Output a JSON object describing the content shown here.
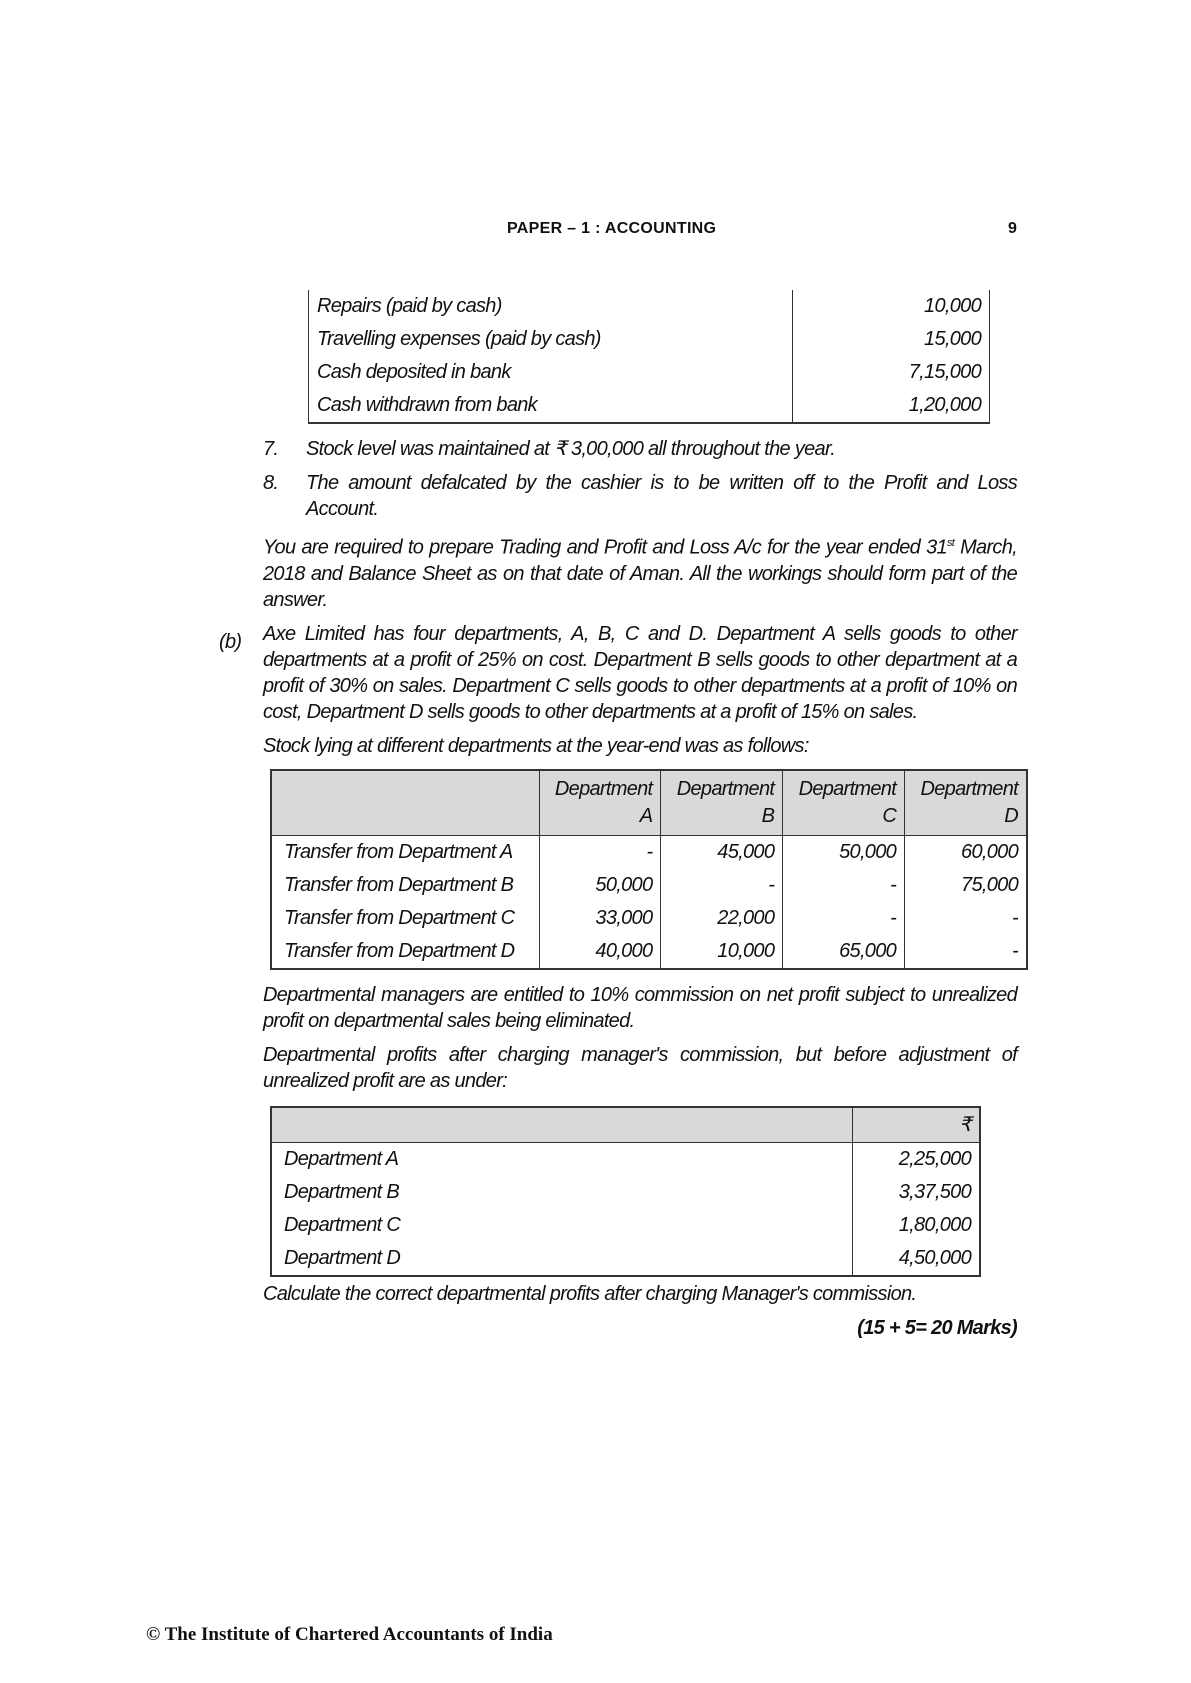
{
  "header": {
    "title": "PAPER – 1 : ACCOUNTING",
    "page_number": "9"
  },
  "cash_table": [
    {
      "item": "Repairs (paid by cash)",
      "amount": "10,000"
    },
    {
      "item": "Travelling expenses (paid by cash)",
      "amount": "15,000"
    },
    {
      "item": "Cash deposited in bank",
      "amount": "7,15,000"
    },
    {
      "item": "Cash withdrawn  from bank",
      "amount": "1,20,000"
    }
  ],
  "points": [
    {
      "num": "7.",
      "text": "Stock level was maintained at ₹ 3,00,000 all throughout the year."
    },
    {
      "num": "8.",
      "text": "The amount defalcated by the cashier is to be written off to the Profit and Loss Account."
    }
  ],
  "instruction_a": {
    "pre": "You are required to prepare Trading and Profit and Loss A/c for the year ended 31",
    "sup": "st",
    "post": " March, 2018 and Balance Sheet as on that date of Aman. All the workings should form part of the answer."
  },
  "part_b": {
    "label": "(b)",
    "intro": "Axe Limited has four departments, A, B, C and D. Department A sells  goods to other departments at a profit of 25% on cost. Department B sells goods to other department at a profit of 30% on sales. Department C sells goods to other departments at a profit of 10% on cost, Department D sells goods to other departments at a profit of 15% on sales.",
    "stock_intro": "Stock lying at different departments at the year-end was as follows:",
    "stock_table": {
      "headers": [
        {
          "l1": "Department",
          "l2": "A"
        },
        {
          "l1": "Department",
          "l2": "B"
        },
        {
          "l1": "Department",
          "l2": "C"
        },
        {
          "l1": "Department",
          "l2": "D"
        }
      ],
      "rows": [
        {
          "label": "Transfer  from Department A",
          "values": [
            "-",
            "45,000",
            "50,000",
            "60,000"
          ]
        },
        {
          "label": "Transfer  from Department B",
          "values": [
            "50,000",
            "-",
            "-",
            "75,000"
          ]
        },
        {
          "label": "Transfer  from Department C",
          "values": [
            "33,000",
            "22,000",
            "-",
            "-"
          ]
        },
        {
          "label": "Transfer  from Department D",
          "values": [
            "40,000",
            "10,000",
            "65,000",
            "-"
          ]
        }
      ]
    },
    "commission_text": "Departmental managers are entitled to 10% commission on net profit subject to unrealized profit on departmental sales being eliminated.",
    "profits_intro": "Departmental profits after charging manager's commission, but before adjustment of unrealized profit are as under:",
    "profit_table": {
      "currency": "₹",
      "rows": [
        {
          "label": "Department A",
          "value": "2,25,000"
        },
        {
          "label": "Department B",
          "value": "3,37,500"
        },
        {
          "label": "Department C",
          "value": "1,80,000"
        },
        {
          "label": "Department D",
          "value": "4,50,000"
        }
      ]
    },
    "question": "Calculate the correct departmental profits after charging Manager's commission.",
    "marks": "(15 + 5= 20 Marks)"
  },
  "footer": "© The Institute of Chartered Accountants of India"
}
